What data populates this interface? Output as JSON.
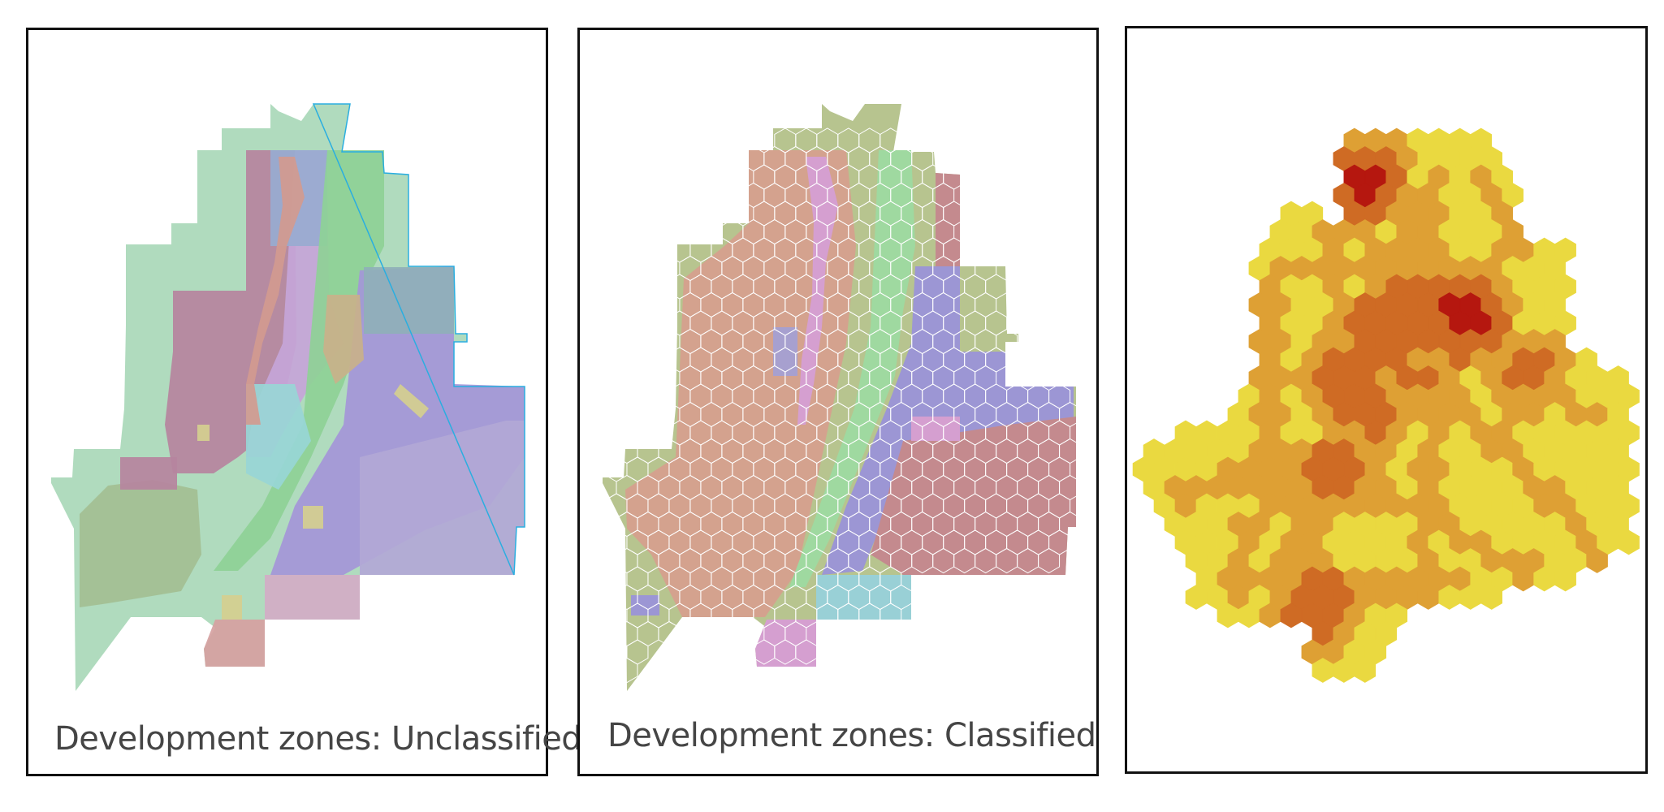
{
  "panels": [
    {
      "caption": "Development zones: Unclassified",
      "symbology": "unclassified-zones",
      "palette": {
        "agriculture": "#a9d8b8",
        "residential": "#b6849e",
        "lavender": "#c6a5d8",
        "blue": "#98abd0",
        "teal": "#98d6d6",
        "green": "#8ed196",
        "purple": "#a496d8",
        "slate": "#8fb0b8",
        "tan": "#c9b18a",
        "pink": "#d3adc6",
        "salmon": "#d6a1a1",
        "yellow": "#d5cf8f",
        "outline": "#2aaee0"
      }
    },
    {
      "caption": "Development zones: Classified",
      "symbology": "hexagon-classified-zones",
      "palette": {
        "olive": "#b7c48f",
        "tan": "#d4a28e",
        "green": "#9fd9a0",
        "purple": "#9c96d4",
        "rose": "#c48a8e",
        "cyan": "#99d0d6",
        "pink": "#d59fd0",
        "grid": "#ffffff"
      }
    },
    {
      "caption": "",
      "symbology": "hexagon-density-heatmap",
      "palette": {
        "low": "#ead940",
        "medium": "#dea034",
        "high": "#cf6b24",
        "highest": "#b5170f"
      }
    }
  ]
}
